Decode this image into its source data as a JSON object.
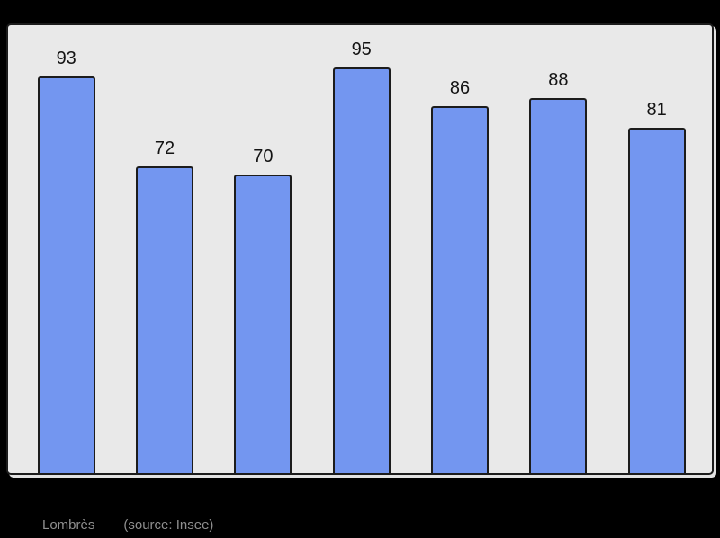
{
  "chart_data": {
    "type": "bar",
    "title": "",
    "xlabel": "",
    "ylabel": "",
    "values": [
      93,
      72,
      70,
      95,
      86,
      88,
      81
    ],
    "data_labels": [
      "93",
      "72",
      "70",
      "95",
      "86",
      "88",
      "81"
    ],
    "ylim": [
      0,
      105
    ],
    "grid": false,
    "legend": false,
    "bar_fill": "#7396f0",
    "bar_stroke": "#1c1c1c",
    "plot_background": "#e9e9e9",
    "outer_background": "#000000",
    "label_color": "#141414"
  },
  "caption": {
    "commune": "Lombrès",
    "source": "(source: Insee)",
    "text_color": "#8f8f8f"
  }
}
